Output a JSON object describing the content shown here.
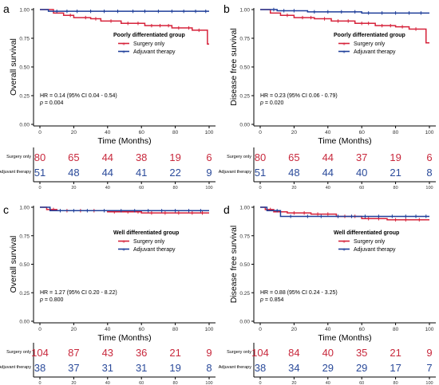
{
  "colors": {
    "surgery": "#d6223a",
    "adjuvant": "#1f3f9a",
    "axis": "#000000",
    "risk_surgery": "#c8283c",
    "risk_adjuvant": "#2a4a9a"
  },
  "chart_data": [
    {
      "panel": "a",
      "type": "line",
      "title": "Poorly differentiated group",
      "xlabel": "Time (Months)",
      "ylabel": "Overall survival",
      "xlim": [
        0,
        100
      ],
      "ylim": [
        0,
        1
      ],
      "x_ticks": [
        "0",
        "20",
        "40",
        "60",
        "80",
        "100"
      ],
      "y_ticks": [
        "0.00",
        "0.25",
        "0.50",
        "0.75",
        "1.00"
      ],
      "legend": [
        "Surgery only",
        "Adjuvant therapy"
      ],
      "legend_position": "top-right",
      "hr_text": "HR = 0.14 (95% CI 0.04 - 0.54)",
      "p_text": "= 0.004",
      "series": [
        {
          "name": "Surgery only",
          "steps": [
            [
              0,
              1
            ],
            [
              8,
              0.97
            ],
            [
              14,
              0.95
            ],
            [
              20,
              0.93
            ],
            [
              30,
              0.92
            ],
            [
              36,
              0.9
            ],
            [
              48,
              0.88
            ],
            [
              62,
              0.86
            ],
            [
              78,
              0.84
            ],
            [
              90,
              0.82
            ],
            [
              99,
              0.7
            ],
            [
              100,
              0.7
            ]
          ],
          "censor": [
            18,
            27,
            33,
            42,
            52,
            58,
            66,
            71,
            76,
            82,
            88,
            94
          ]
        },
        {
          "name": "Adjuvant therapy",
          "steps": [
            [
              0,
              1
            ],
            [
              5,
              0.985
            ],
            [
              100,
              0.985
            ]
          ],
          "censor": [
            10,
            16,
            22,
            30,
            38,
            46,
            55,
            62,
            70,
            78,
            85,
            92,
            98
          ]
        }
      ],
      "risk_table": {
        "rows": [
          "Surgery only",
          "Adjuvant therapy"
        ],
        "values": [
          [
            "80",
            "65",
            "44",
            "38",
            "19",
            "6"
          ],
          [
            "51",
            "48",
            "44",
            "41",
            "22",
            "9"
          ]
        ],
        "x_ticks": [
          "0",
          "20",
          "40",
          "60",
          "80",
          "100"
        ]
      }
    },
    {
      "panel": "b",
      "type": "line",
      "title": "Poorly differentiated group",
      "xlabel": "Time (Months)",
      "ylabel": "Disease free survival",
      "xlim": [
        0,
        100
      ],
      "ylim": [
        0,
        1
      ],
      "x_ticks": [
        "0",
        "20",
        "40",
        "60",
        "80",
        "100"
      ],
      "y_ticks": [
        "0.00",
        "0.25",
        "0.50",
        "0.75",
        "1.00"
      ],
      "legend": [
        "Surgery only",
        "Adjuvant therapy"
      ],
      "legend_position": "top-right",
      "hr_text": "HR = 0.23 (95% CI 0.06 - 0.79)",
      "p_text": "= 0.020",
      "series": [
        {
          "name": "Surgery only",
          "steps": [
            [
              0,
              1
            ],
            [
              6,
              0.97
            ],
            [
              12,
              0.95
            ],
            [
              20,
              0.93
            ],
            [
              32,
              0.92
            ],
            [
              42,
              0.9
            ],
            [
              56,
              0.88
            ],
            [
              68,
              0.86
            ],
            [
              80,
              0.85
            ],
            [
              88,
              0.83
            ],
            [
              98,
              0.71
            ],
            [
              100,
              0.71
            ]
          ],
          "censor": [
            16,
            25,
            30,
            38,
            46,
            52,
            60,
            64,
            72,
            77,
            84,
            92
          ]
        },
        {
          "name": "Adjuvant therapy",
          "steps": [
            [
              0,
              1
            ],
            [
              10,
              0.99
            ],
            [
              28,
              0.98
            ],
            [
              60,
              0.97
            ],
            [
              100,
              0.97
            ]
          ],
          "censor": [
            8,
            14,
            20,
            32,
            40,
            48,
            56,
            64,
            72,
            80,
            88,
            95
          ]
        }
      ],
      "risk_table": {
        "rows": [
          "Surgery only",
          "Adjuvant therapy"
        ],
        "values": [
          [
            "80",
            "65",
            "44",
            "37",
            "19",
            "6"
          ],
          [
            "51",
            "48",
            "44",
            "40",
            "21",
            "8"
          ]
        ],
        "x_ticks": [
          "0",
          "20",
          "40",
          "60",
          "80",
          "100"
        ]
      }
    },
    {
      "panel": "c",
      "type": "line",
      "title": "Well differentiated group",
      "xlabel": "Time (Months)",
      "ylabel": "Overall survival",
      "xlim": [
        0,
        100
      ],
      "ylim": [
        0,
        1
      ],
      "x_ticks": [
        "0",
        "20",
        "40",
        "60",
        "80",
        "100"
      ],
      "y_ticks": [
        "0.00",
        "0.25",
        "0.50",
        "0.75",
        "1.00"
      ],
      "legend": [
        "Surgery only",
        "Adjuvant therapy"
      ],
      "legend_position": "top-right",
      "hr_text": "HR = 1.27 (95% CI 0.20 - 8.22)",
      "p_text": "= 0.800",
      "series": [
        {
          "name": "Surgery only",
          "steps": [
            [
              0,
              1
            ],
            [
              4,
              0.98
            ],
            [
              10,
              0.97
            ],
            [
              40,
              0.96
            ],
            [
              60,
              0.95
            ],
            [
              100,
              0.95
            ]
          ],
          "censor": [
            8,
            16,
            24,
            32,
            44,
            52,
            58,
            66,
            74,
            82,
            90,
            96
          ]
        },
        {
          "name": "Adjuvant therapy",
          "steps": [
            [
              0,
              1
            ],
            [
              6,
              0.97
            ],
            [
              100,
              0.97
            ]
          ],
          "censor": [
            12,
            20,
            28,
            38,
            48,
            56,
            64,
            72,
            80,
            88,
            95
          ]
        }
      ],
      "risk_table": {
        "rows": [
          "Surgery only",
          "Adjuvant therapy"
        ],
        "values": [
          [
            "104",
            "87",
            "43",
            "36",
            "21",
            "9"
          ],
          [
            "38",
            "37",
            "31",
            "31",
            "19",
            "8"
          ]
        ],
        "x_ticks": [
          "0",
          "20",
          "40",
          "60",
          "80",
          "100"
        ]
      }
    },
    {
      "panel": "d",
      "type": "line",
      "title": "Well differentiated group",
      "xlabel": "Time (Months)",
      "ylabel": "Disease free survival",
      "xlim": [
        0,
        100
      ],
      "ylim": [
        0,
        1
      ],
      "x_ticks": [
        "0",
        "20",
        "40",
        "60",
        "80",
        "100"
      ],
      "y_ticks": [
        "0.00",
        "0.25",
        "0.50",
        "0.75",
        "1.00"
      ],
      "legend": [
        "Surgery only",
        "Adjuvant therapy"
      ],
      "legend_position": "top-right",
      "hr_text": "HR = 0.88 (95% CI 0.24 - 3.25)",
      "p_text": "= 0.854",
      "series": [
        {
          "name": "Surgery only",
          "steps": [
            [
              0,
              1
            ],
            [
              3,
              0.98
            ],
            [
              8,
              0.96
            ],
            [
              16,
              0.95
            ],
            [
              30,
              0.94
            ],
            [
              45,
              0.92
            ],
            [
              60,
              0.9
            ],
            [
              75,
              0.89
            ],
            [
              100,
              0.89
            ]
          ],
          "censor": [
            6,
            12,
            20,
            26,
            34,
            40,
            50,
            56,
            64,
            70,
            80,
            86,
            94
          ]
        },
        {
          "name": "Adjuvant therapy",
          "steps": [
            [
              0,
              1
            ],
            [
              4,
              0.97
            ],
            [
              12,
              0.92
            ],
            [
              100,
              0.92
            ]
          ],
          "censor": [
            10,
            18,
            28,
            36,
            46,
            54,
            62,
            70,
            78,
            86,
            92,
            98
          ]
        }
      ],
      "risk_table": {
        "rows": [
          "Surgery only",
          "Adjuvant therapy"
        ],
        "values": [
          [
            "104",
            "84",
            "40",
            "35",
            "21",
            "9"
          ],
          [
            "38",
            "34",
            "29",
            "29",
            "17",
            "7"
          ]
        ],
        "x_ticks": [
          "0",
          "20",
          "40",
          "60",
          "80",
          "100"
        ]
      }
    }
  ]
}
